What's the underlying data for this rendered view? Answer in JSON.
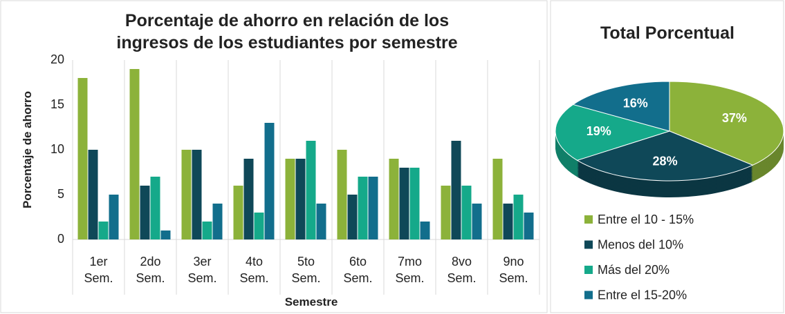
{
  "chart_data": [
    {
      "type": "bar",
      "title": "Porcentaje de ahorro en relación de los\ningresos de los estudiantes por semestre",
      "x_label": "Semestre",
      "y_label": "Porcentaje de ahorro",
      "categories": [
        "1er\nSem.",
        "2do\nSem.",
        "3er\nSem.",
        "4to\nSem.",
        "5to\nSem.",
        "6to\nSem.",
        "7mo\nSem.",
        "8vo\nSem.",
        "9no\nSem."
      ],
      "series": [
        {
          "color": "#8cb23a",
          "values": [
            18,
            19,
            10,
            6,
            9,
            10,
            9,
            6,
            9
          ]
        },
        {
          "color": "#0f4858",
          "values": [
            10,
            6,
            10,
            9,
            9,
            5,
            8,
            11,
            4
          ]
        },
        {
          "color": "#15a98a",
          "values": [
            2,
            7,
            2,
            3,
            11,
            7,
            8,
            6,
            5
          ]
        },
        {
          "color": "#126e8c",
          "values": [
            5,
            1,
            4,
            13,
            4,
            7,
            2,
            4,
            3
          ]
        }
      ],
      "ylim": [
        0,
        20
      ],
      "yticks": [
        0,
        5,
        10,
        15,
        20
      ],
      "grid": "vertical"
    },
    {
      "type": "pie",
      "title": "Total Porcentual",
      "categories": [
        "Entre el 10 - 15%",
        "Menos del 10%",
        "Más del 20%",
        "Entre el 15-20%"
      ],
      "values": [
        37,
        28,
        19,
        16
      ],
      "value_labels": [
        "37%",
        "28%",
        "19%",
        "16%"
      ],
      "colors": [
        "#8cb23a",
        "#0f4858",
        "#15a98a",
        "#126e8c"
      ],
      "legend": "bottom"
    }
  ]
}
